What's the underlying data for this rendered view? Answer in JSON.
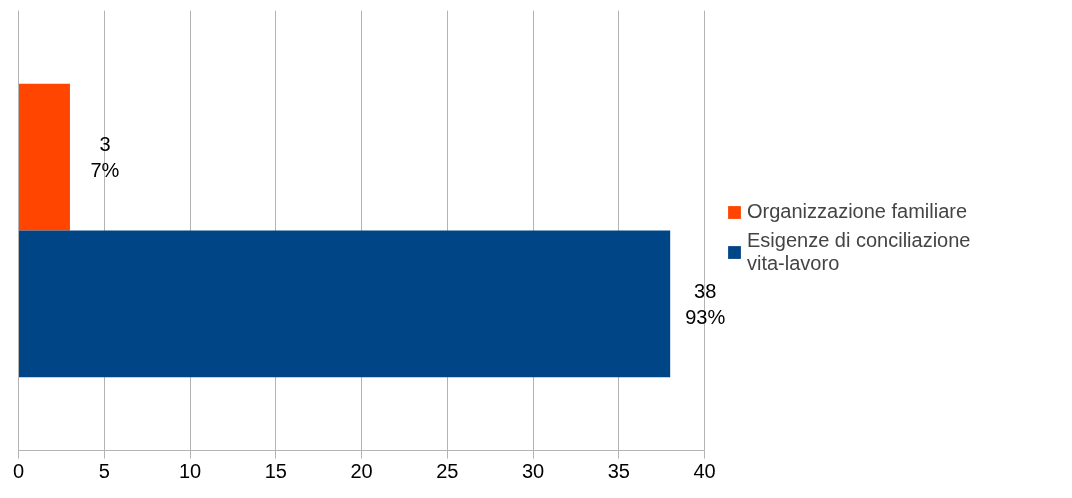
{
  "chart_data": {
    "type": "bar",
    "orientation": "horizontal",
    "categories": [
      null
    ],
    "series": [
      {
        "name": "Organizzazione familiare",
        "color": "#ff4500",
        "values": [
          3
        ],
        "value_labels": [
          "3\n7%"
        ]
      },
      {
        "name": "Esigenze di conciliazione vita-lavoro",
        "color": "#004586",
        "values": [
          38
        ],
        "value_labels": [
          "38\n93%"
        ]
      }
    ],
    "xlim": [
      0,
      40
    ],
    "xticks": [
      0,
      5,
      10,
      15,
      20,
      25,
      30,
      35,
      40
    ],
    "grid": "x",
    "legend": "right",
    "tick_labels": "x"
  }
}
